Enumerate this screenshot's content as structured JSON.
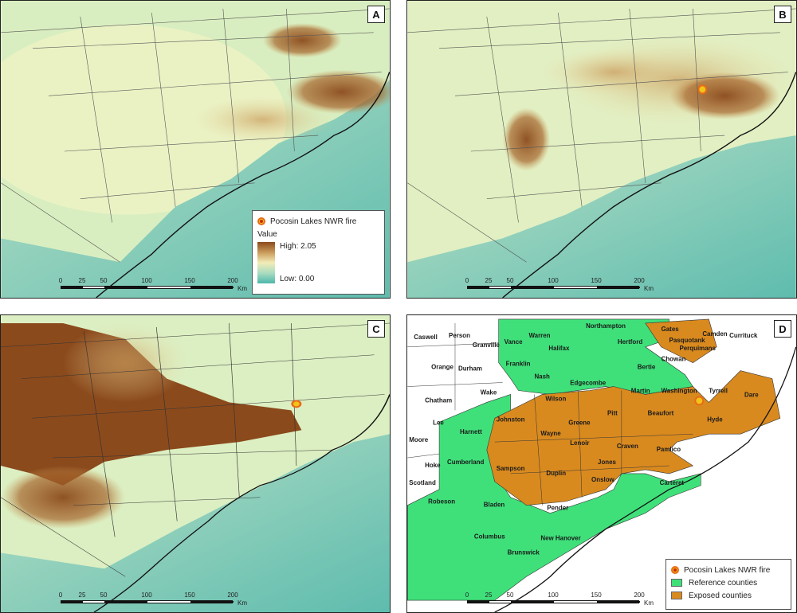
{
  "panels": {
    "a": {
      "letter": "A"
    },
    "b": {
      "letter": "B"
    },
    "c": {
      "letter": "C"
    },
    "d": {
      "letter": "D"
    }
  },
  "legend_a": {
    "fire": "Pocosin Lakes NWR fire",
    "value_title": "Value",
    "high": "High: 2.05",
    "low": "Low: 0.00"
  },
  "legend_d": {
    "fire": "Pocosin Lakes NWR fire",
    "reference": "Reference counties",
    "exposed": "Exposed counties"
  },
  "scalebar": {
    "ticks": [
      "0",
      "25",
      "50",
      "100",
      "150",
      "200"
    ],
    "unit": "Km"
  },
  "colors": {
    "high": "#8b4a1c",
    "mid": "#f3ecb8",
    "low": "#4db7ad",
    "ocean": "#6fc3b3",
    "reference": "#3fe07a",
    "exposed": "#d98a1f",
    "fire": "#f0c419"
  },
  "counties": {
    "caswell": "Caswell",
    "person": "Person",
    "granville": "Granville",
    "vance": "Vance",
    "warren": "Warren",
    "northampton": "Northampton",
    "hertford": "Hertford",
    "gates": "Gates",
    "camden": "Camden",
    "currituck": "Currituck",
    "pasquotank": "Pasquotank",
    "perquimans": "Perquimans",
    "chowan": "Chowan",
    "halifax": "Halifax",
    "bertie": "Bertie",
    "orange": "Orange",
    "durham": "Durham",
    "franklin": "Franklin",
    "nash": "Nash",
    "edgecombe": "Edgecombe",
    "martin": "Martin",
    "washington": "Washington",
    "tyrrell": "Tyrrell",
    "dare": "Dare",
    "wake": "Wake",
    "chatham": "Chatham",
    "wilson": "Wilson",
    "pitt": "Pitt",
    "beaufort": "Beaufort",
    "hyde": "Hyde",
    "johnston": "Johnston",
    "greene": "Greene",
    "lee": "Lee",
    "harnett": "Harnett",
    "wayne": "Wayne",
    "lenoir": "Lenoir",
    "craven": "Craven",
    "pamlico": "Pamlico",
    "moore": "Moore",
    "hoke": "Hoke",
    "cumberland": "Cumberland",
    "sampson": "Sampson",
    "duplin": "Duplin",
    "jones": "Jones",
    "scotland": "Scotland",
    "onslow": "Onslow",
    "carteret": "Carteret",
    "robeson": "Robeson",
    "bladen": "Bladen",
    "pender": "Pender",
    "columbus": "Columbus",
    "new_hanover": "New Hanover",
    "brunswick": "Brunswick"
  }
}
